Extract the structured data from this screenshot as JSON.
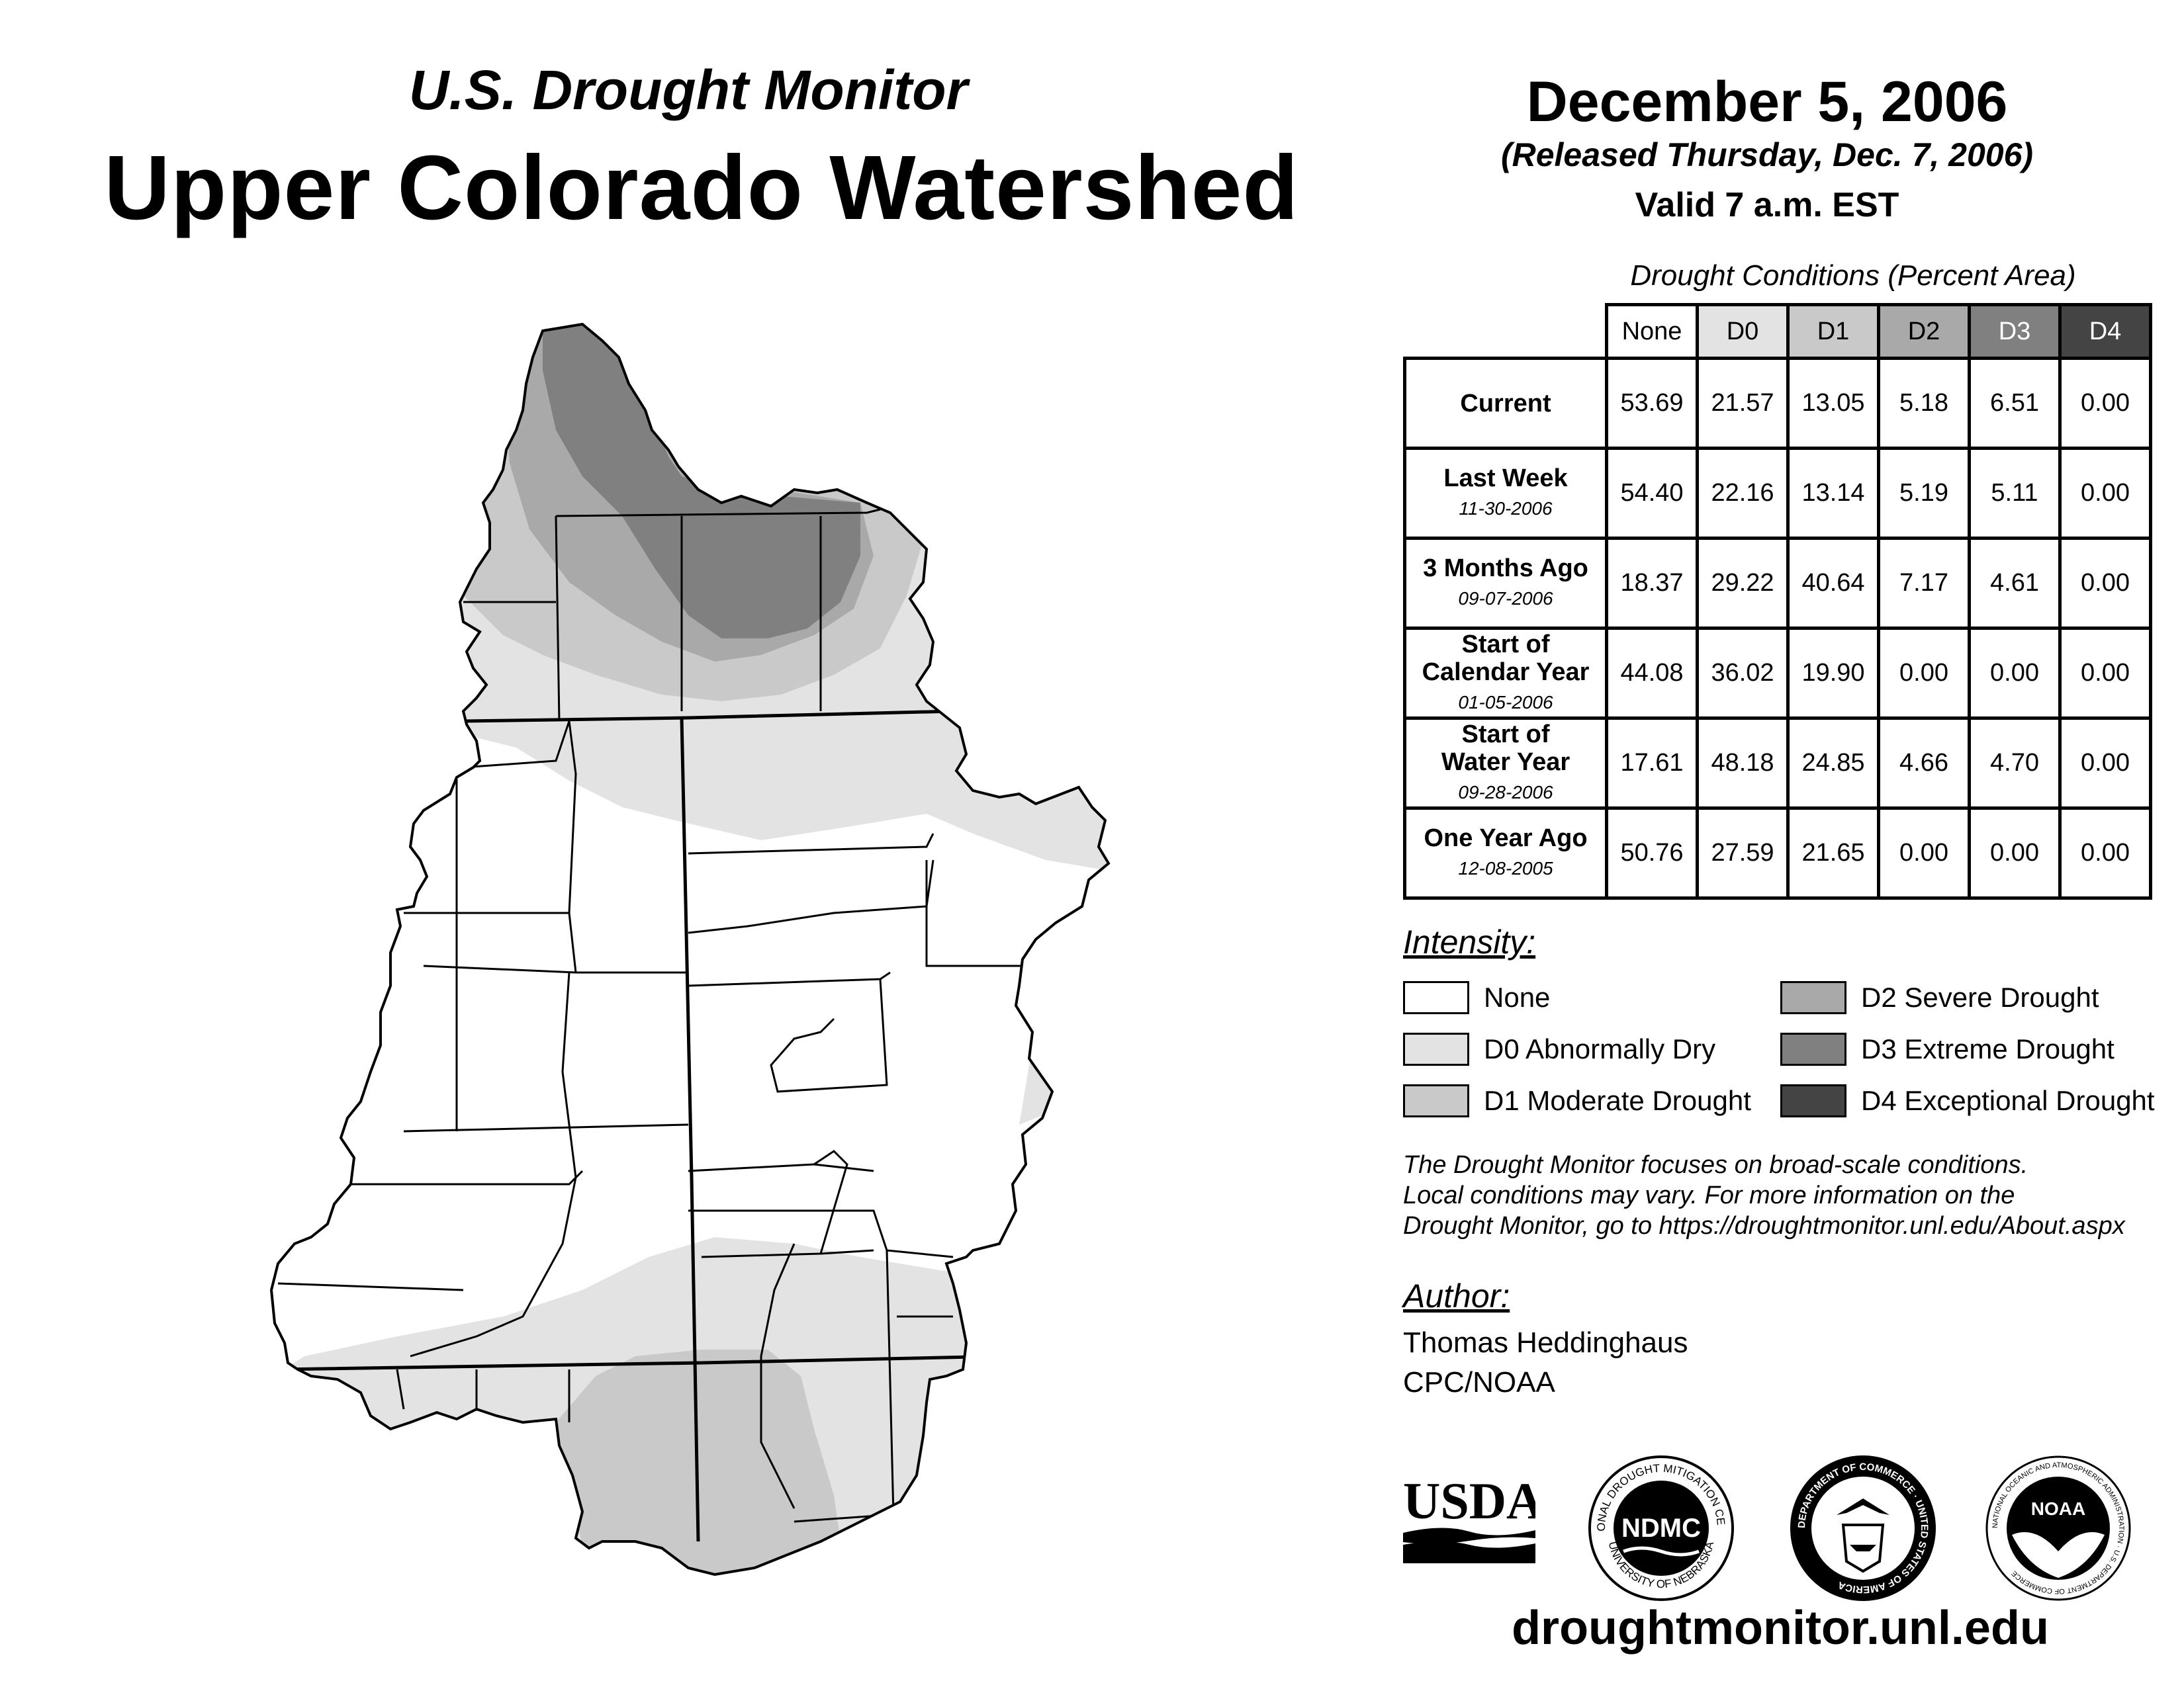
{
  "header": {
    "subtitle": "U.S. Drought Monitor",
    "title": "Upper Colorado Watershed",
    "date": "December 5, 2006",
    "released": "(Released Thursday, Dec. 7, 2006)",
    "valid": "Valid 7 a.m. EST"
  },
  "table": {
    "caption": "Drought Conditions (Percent Area)",
    "columns": [
      "None",
      "D0",
      "D1",
      "D2",
      "D3",
      "D4"
    ],
    "column_colors": [
      "#ffffff",
      "#e3e3e3",
      "#c9c9c9",
      "#a9a9a9",
      "#808080",
      "#444444"
    ],
    "column_text_colors": [
      "#000000",
      "#000000",
      "#000000",
      "#000000",
      "#ffffff",
      "#ffffff"
    ],
    "rows": [
      {
        "label1": "Current",
        "label2": "",
        "date": "",
        "values": [
          "53.69",
          "21.57",
          "13.05",
          "5.18",
          "6.51",
          "0.00"
        ]
      },
      {
        "label1": "Last Week",
        "label2": "",
        "date": "11-30-2006",
        "values": [
          "54.40",
          "22.16",
          "13.14",
          "5.19",
          "5.11",
          "0.00"
        ]
      },
      {
        "label1": "3 Months Ago",
        "label2": "",
        "date": "09-07-2006",
        "values": [
          "18.37",
          "29.22",
          "40.64",
          "7.17",
          "4.61",
          "0.00"
        ]
      },
      {
        "label1": "Start of",
        "label2": "Calendar Year",
        "date": "01-05-2006",
        "values": [
          "44.08",
          "36.02",
          "19.90",
          "0.00",
          "0.00",
          "0.00"
        ]
      },
      {
        "label1": "Start of",
        "label2": "Water Year",
        "date": "09-28-2006",
        "values": [
          "17.61",
          "48.18",
          "24.85",
          "4.66",
          "4.70",
          "0.00"
        ]
      },
      {
        "label1": "One Year Ago",
        "label2": "",
        "date": "12-08-2005",
        "values": [
          "50.76",
          "27.59",
          "21.65",
          "0.00",
          "0.00",
          "0.00"
        ]
      }
    ]
  },
  "legend": {
    "heading": "Intensity:",
    "items": [
      {
        "label": "None",
        "color": "#ffffff"
      },
      {
        "label": "D0 Abnormally Dry",
        "color": "#e3e3e3"
      },
      {
        "label": "D1 Moderate Drought",
        "color": "#c9c9c9"
      },
      {
        "label": "D2 Severe Drought",
        "color": "#a9a9a9"
      },
      {
        "label": "D3 Extreme Drought",
        "color": "#808080"
      },
      {
        "label": "D4 Exceptional Drought",
        "color": "#444444"
      }
    ]
  },
  "note": {
    "line1": "The Drought Monitor focuses on broad-scale conditions.",
    "line2": "Local conditions may vary. For more information on the",
    "line3": "Drought Monitor, go to https://droughtmonitor.unl.edu/About.aspx"
  },
  "author": {
    "heading": "Author:",
    "name": "Thomas Heddinghaus",
    "org": "CPC/NOAA"
  },
  "logos": {
    "usda": "USDA",
    "ndmc": "NDMC",
    "ndmc_ring_top": "NATIONAL DROUGHT MITIGATION CENTER",
    "ndmc_ring_bottom": "UNIVERSITY OF NEBRASKA",
    "doc_ring": "DEPARTMENT OF COMMERCE · UNITED STATES OF AMERICA",
    "noaa": "NOAA",
    "noaa_ring": "NATIONAL OCEANIC AND ATMOSPHERIC ADMINISTRATION · U.S. DEPARTMENT OF COMMERCE"
  },
  "website": "droughtmonitor.unl.edu"
}
